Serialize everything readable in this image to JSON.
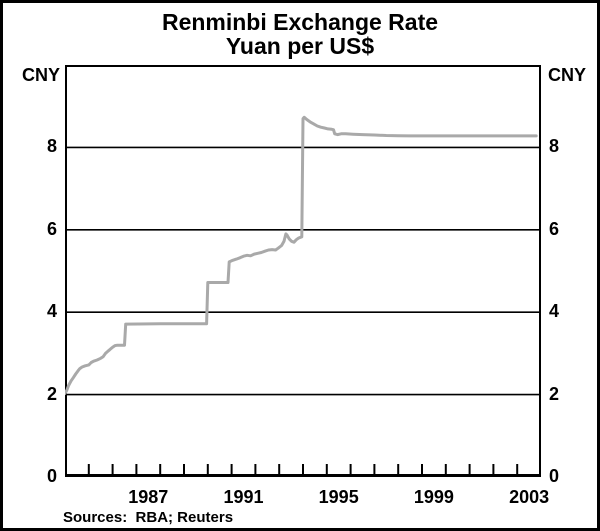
{
  "title": {
    "line1": "Renminbi Exchange Rate",
    "line2": "Yuan per US$"
  },
  "axes": {
    "left_unit": "CNY",
    "right_unit": "CNY"
  },
  "footer": {
    "sources": "Sources:  RBA; Reuters"
  },
  "colors": {
    "line": "#a9a9a9",
    "frame": "#000000",
    "text": "#000000",
    "background": "#ffffff"
  },
  "chart_data": {
    "type": "line",
    "title": "Renminbi Exchange Rate",
    "subtitle": "Yuan per US$",
    "ylabel": "CNY",
    "ylabel_right": "CNY",
    "ylim": [
      0,
      10
    ],
    "xlim": [
      1984,
      2004
    ],
    "y_axis_labels": [
      0,
      2,
      4,
      6,
      8
    ],
    "y_gridlines": [
      2,
      4,
      6,
      8
    ],
    "x_tick_years": [
      1985,
      1986,
      1987,
      1988,
      1989,
      1990,
      1991,
      1992,
      1993,
      1994,
      1995,
      1996,
      1997,
      1998,
      1999,
      2000,
      2001,
      2002,
      2003
    ],
    "x_axis_labels": [
      1987,
      1991,
      1995,
      1999,
      2003
    ],
    "grid": "horizontal",
    "legend": "none",
    "series": [
      {
        "name": "Yuan per US$",
        "x": [
          1984.0,
          1984.07,
          1984.15,
          1984.25,
          1984.35,
          1984.45,
          1984.55,
          1984.62,
          1984.72,
          1984.85,
          1985.0,
          1985.1,
          1985.2,
          1985.35,
          1985.5,
          1985.6,
          1985.7,
          1985.8,
          1985.9,
          1986.0,
          1986.1,
          1986.2,
          1986.5,
          1986.55,
          1988.0,
          1989.95,
          1990.0,
          1990.85,
          1990.9,
          1991.05,
          1991.2,
          1991.35,
          1991.5,
          1991.65,
          1991.8,
          1991.95,
          1992.1,
          1992.25,
          1992.4,
          1992.55,
          1992.7,
          1992.85,
          1992.95,
          1993.1,
          1993.2,
          1993.28,
          1993.33,
          1993.42,
          1993.52,
          1993.62,
          1993.72,
          1993.82,
          1993.95,
          1994.0,
          1994.05,
          1994.15,
          1994.3,
          1994.45,
          1994.6,
          1994.75,
          1994.9,
          1995.05,
          1995.2,
          1995.28,
          1995.33,
          1995.45,
          1995.6,
          1995.8,
          1996.1,
          1996.5,
          1997.0,
          1997.5,
          1998.0,
          1998.5,
          1999.5,
          2000.5,
          2001.5,
          2002.5,
          2003.3,
          2003.8
        ],
        "y": [
          2.03,
          2.1,
          2.22,
          2.33,
          2.41,
          2.5,
          2.58,
          2.63,
          2.67,
          2.7,
          2.72,
          2.78,
          2.81,
          2.84,
          2.88,
          2.92,
          3.0,
          3.05,
          3.1,
          3.15,
          3.19,
          3.2,
          3.2,
          3.71,
          3.72,
          3.72,
          4.72,
          4.72,
          5.22,
          5.26,
          5.29,
          5.32,
          5.36,
          5.38,
          5.37,
          5.41,
          5.43,
          5.45,
          5.48,
          5.51,
          5.52,
          5.51,
          5.55,
          5.62,
          5.72,
          5.9,
          5.87,
          5.78,
          5.72,
          5.7,
          5.76,
          5.8,
          5.83,
          8.7,
          8.73,
          8.68,
          8.62,
          8.57,
          8.52,
          8.49,
          8.47,
          8.45,
          8.44,
          8.43,
          8.33,
          8.31,
          8.33,
          8.33,
          8.32,
          8.31,
          8.3,
          8.29,
          8.285,
          8.28,
          8.28,
          8.28,
          8.28,
          8.28,
          8.28,
          8.28
        ]
      }
    ]
  }
}
